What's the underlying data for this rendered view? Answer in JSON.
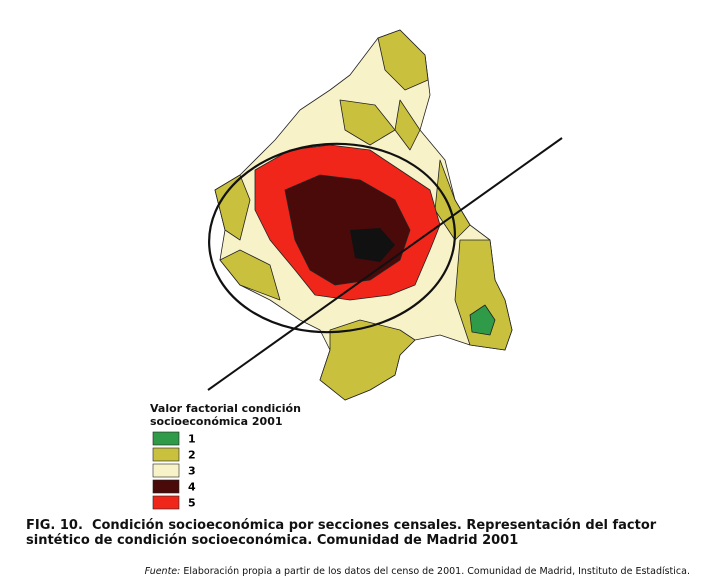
{
  "legend": {
    "title": "Valor factorial condición socioeconómica 2001",
    "items": [
      {
        "label": "1",
        "color": "#2f9a48"
      },
      {
        "label": "2",
        "color": "#c9c13e"
      },
      {
        "label": "3",
        "color": "#f8f2c8"
      },
      {
        "label": "4",
        "color": "#4a0a0a"
      },
      {
        "label": "5",
        "color": "#f0261a"
      }
    ]
  },
  "caption": {
    "label": "FIG. 10.",
    "text": "Condición socioeconómica por secciones censales. Representación del factor sintético de condición socioeconómica. Comunidad de Madrid 2001"
  },
  "source": {
    "label": "Fuente:",
    "text": "Elaboración propia a partir de los datos del censo de 2001. Comunidad de Madrid, Instituto de Estadística."
  }
}
